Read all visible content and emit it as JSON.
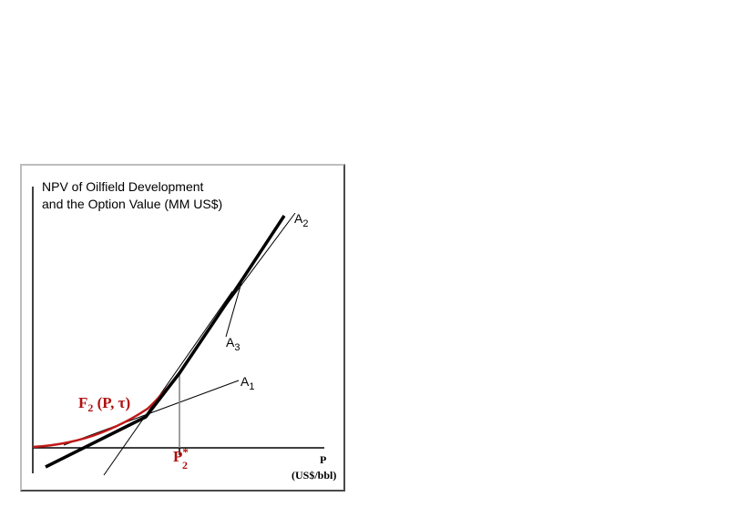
{
  "figure": {
    "title_line1": "NPV of Oilfield Development",
    "title_line2": "and the Option Value (MM US$)",
    "x_axis_label": "P",
    "x_axis_unit": "(US$/bbl)",
    "option_curve_label": "F",
    "option_curve_sub": "2",
    "option_curve_args": " (P, τ)",
    "threshold_label": "P",
    "threshold_sub": "2",
    "threshold_sup": "*",
    "alt_labels": [
      {
        "main": "A",
        "sub": "2"
      },
      {
        "main": "A",
        "sub": "3"
      },
      {
        "main": "A",
        "sub": "1"
      }
    ]
  },
  "colors": {
    "npv_line": "#000000",
    "option_curve": "#c01818",
    "axis": "#000000",
    "guide_line": "#808080"
  }
}
